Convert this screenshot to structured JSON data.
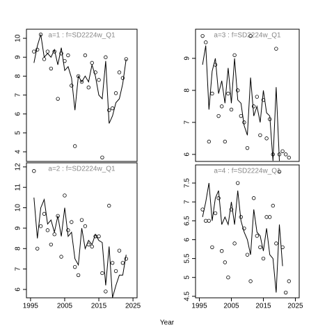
{
  "xlabel": "Year",
  "chart_data": [
    {
      "type": "line",
      "title": "a=1 : f=SD2224w_Q1",
      "x": [
        1996,
        1997,
        1998,
        1999,
        2000,
        2001,
        2002,
        2003,
        2004,
        2005,
        2006,
        2007,
        2008,
        2009,
        2010,
        2011,
        2012,
        2013,
        2014,
        2015,
        2016,
        2017,
        2018,
        2019,
        2020,
        2021,
        2022,
        2023
      ],
      "series": [
        {
          "style": "points",
          "color": "#000000",
          "values": [
            9.3,
            9.4,
            10.2,
            8.9,
            9.3,
            8.4,
            9.3,
            6.8,
            9.2,
            8.8,
            9.1,
            7.5,
            4.3,
            8.0,
            7.7,
            9.1,
            7.4,
            8.7,
            8.2,
            7.8,
            3.7,
            9.0,
            6.2,
            6.3,
            7.1,
            8.2,
            7.9,
            8.9
          ]
        },
        {
          "style": "line",
          "color": "#000000",
          "values": [
            8.7,
            9.6,
            10.2,
            9.0,
            9.2,
            9.0,
            9.4,
            8.6,
            9.5,
            8.3,
            8.5,
            7.9,
            6.2,
            8.0,
            7.7,
            8.0,
            7.7,
            8.6,
            8.0,
            7.0,
            6.8,
            8.8,
            5.5,
            5.9,
            6.6,
            6.8,
            7.6,
            8.9
          ]
        }
      ],
      "xlim": [
        1993.8,
        2026.2
      ],
      "ylim": [
        3.49,
        10.48
      ],
      "yticks": [
        4,
        5,
        6,
        7,
        8,
        9,
        10
      ]
    },
    {
      "type": "line",
      "title": "a=3 : f=SD2224w_Q1",
      "x": [
        1996,
        1997,
        1998,
        1999,
        2000,
        2001,
        2002,
        2003,
        2004,
        2005,
        2006,
        2007,
        2008,
        2009,
        2010,
        2011,
        2012,
        2013,
        2014,
        2015,
        2016,
        2017,
        2018,
        2019,
        2020,
        2021,
        2022,
        2023
      ],
      "series": [
        {
          "style": "points",
          "color": "#000000",
          "values": [
            9.7,
            9.5,
            6.4,
            7.9,
            8.8,
            7.2,
            7.5,
            6.4,
            7.9,
            7.4,
            9.1,
            8.0,
            7.2,
            7.0,
            6.2,
            9.7,
            7.5,
            7.8,
            6.6,
            7.7,
            6.5,
            7.1,
            6.0,
            9.3,
            6.0,
            6.1,
            6.0,
            5.9
          ]
        },
        {
          "style": "line",
          "color": "#000000",
          "values": [
            8.8,
            9.4,
            7.4,
            8.6,
            9.0,
            7.9,
            8.3,
            7.6,
            8.7,
            7.6,
            9.0,
            7.7,
            7.6,
            6.9,
            6.6,
            8.4,
            7.2,
            7.5,
            7.0,
            8.0,
            7.3,
            7.2,
            5.8,
            8.1,
            5.8,
            null,
            null,
            null
          ]
        }
      ],
      "xlim": [
        1993.8,
        2026.2
      ],
      "ylim": [
        5.78,
        9.91
      ],
      "yticks": [
        6,
        7,
        8,
        9
      ]
    },
    {
      "type": "line",
      "title": "a=2 : f=SD2224w_Q1",
      "x": [
        1996,
        1997,
        1998,
        1999,
        2000,
        2001,
        2002,
        2003,
        2004,
        2005,
        2006,
        2007,
        2008,
        2009,
        2010,
        2011,
        2012,
        2013,
        2014,
        2015,
        2016,
        2017,
        2018,
        2019,
        2020,
        2021,
        2022,
        2023
      ],
      "series": [
        {
          "style": "points",
          "color": "#000000",
          "values": [
            11.8,
            8.0,
            9.1,
            9.7,
            8.9,
            8.2,
            8.7,
            9.6,
            7.6,
            10.6,
            8.9,
            9.3,
            7.1,
            6.7,
            9.4,
            9.1,
            8.2,
            8.1,
            8.6,
            8.6,
            6.8,
            5.9,
            10.1,
            7.3,
            6.9,
            7.9,
            7.3,
            7.5
          ]
        },
        {
          "style": "line",
          "color": "#000000",
          "values": [
            10.5,
            8.5,
            10.0,
            10.4,
            9.2,
            9.4,
            8.8,
            9.6,
            8.6,
            10.0,
            8.6,
            8.8,
            7.5,
            7.2,
            9.0,
            8.0,
            8.4,
            8.2,
            8.7,
            8.4,
            8.3,
            6.2,
            8.1,
            5.6,
            6.2,
            6.7,
            6.7,
            7.7
          ]
        }
      ],
      "xlim": [
        1993.8,
        2026.2
      ],
      "ylim": [
        5.59,
        12.2
      ],
      "yticks": [
        6,
        7,
        8,
        9,
        10,
        11,
        12
      ],
      "xticks": [
        1995,
        2005,
        2015,
        2025
      ]
    },
    {
      "type": "line",
      "title": "a=4 : f=SD2224w_Q1",
      "x": [
        1996,
        1997,
        1998,
        1999,
        2000,
        2001,
        2002,
        2003,
        2004,
        2005,
        2006,
        2007,
        2008,
        2009,
        2010,
        2011,
        2012,
        2013,
        2014,
        2015,
        2016,
        2017,
        2018,
        2019,
        2020,
        2021,
        2022,
        2023
      ],
      "series": [
        {
          "style": "points",
          "color": "#000000",
          "values": [
            6.8,
            6.5,
            6.5,
            5.8,
            6.7,
            7.1,
            5.7,
            5.4,
            5.0,
            6.8,
            5.9,
            7.5,
            6.6,
            6.3,
            5.6,
            4.9,
            7.1,
            6.1,
            5.8,
            5.5,
            6.6,
            6.6,
            6.9,
            5.9,
            7.8,
            5.8,
            4.6,
            4.9
          ]
        },
        {
          "style": "line",
          "color": "#000000",
          "values": [
            6.6,
            7.0,
            7.5,
            6.5,
            7.1,
            7.3,
            6.4,
            6.6,
            6.4,
            7.0,
            6.4,
            7.3,
            6.5,
            6.2,
            6.0,
            5.6,
            6.8,
            6.2,
            6.1,
            5.7,
            6.3,
            5.6,
            5.5,
            4.6,
            6.4,
            5.3,
            null,
            null
          ]
        }
      ],
      "xlim": [
        1993.8,
        2026.2
      ],
      "ylim": [
        4.46,
        7.98
      ],
      "yticks": [
        4.5,
        5.0,
        5.5,
        6.0,
        6.5,
        7.0,
        7.5
      ],
      "xticks": [
        1995,
        2005,
        2015,
        2025
      ]
    }
  ]
}
